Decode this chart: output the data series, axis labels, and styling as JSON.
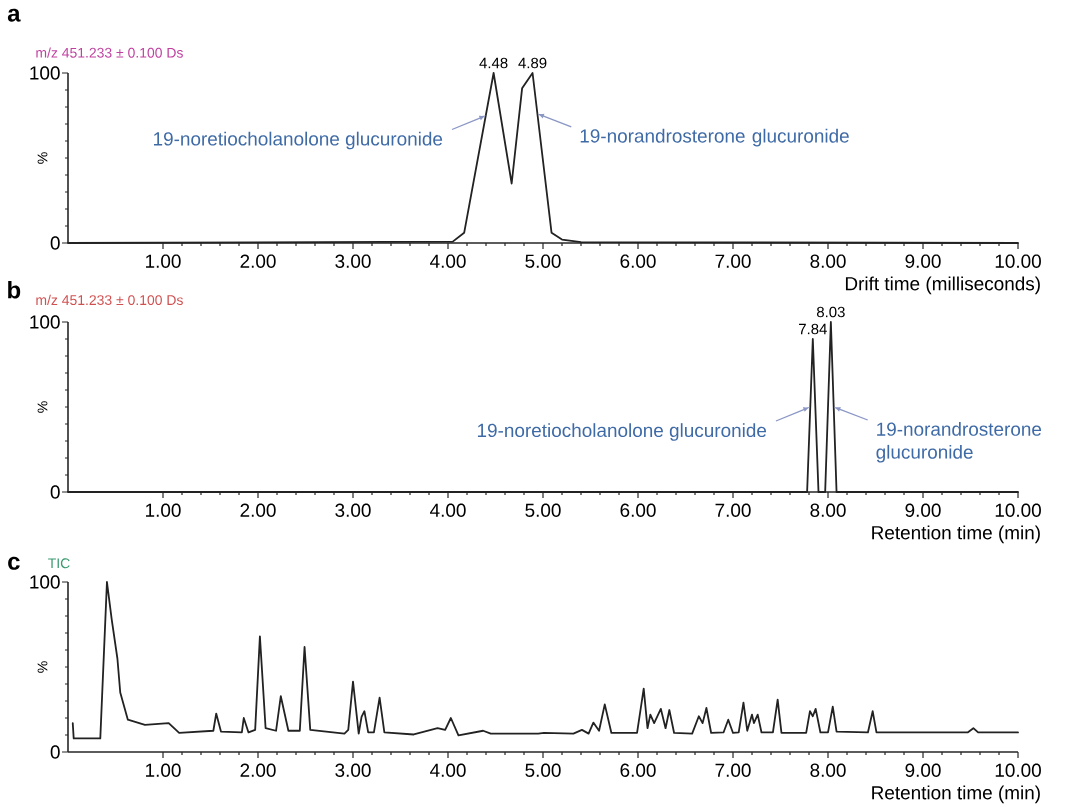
{
  "chart_data": [
    {
      "type": "line",
      "title": "a",
      "subtitle": "m/z 451.233 ± 0.100 Ds",
      "xlabel": "Drift time (milliseconds)",
      "ylabel": "%",
      "x": [
        0,
        4.05,
        4.17,
        4.48,
        4.67,
        4.78,
        4.89,
        5.09,
        5.2,
        5.4,
        10
      ],
      "values": [
        0,
        0.8,
        6,
        100,
        35,
        91,
        100,
        6,
        2,
        0.5,
        0
      ],
      "color": "#222222",
      "xlim": [
        0,
        10
      ],
      "ylim": [
        0,
        100
      ],
      "xticks": [
        {
          "value": 1,
          "label": "1.00"
        },
        {
          "value": 2,
          "label": "2.00"
        },
        {
          "value": 3,
          "label": "3.00"
        },
        {
          "value": 4,
          "label": "4.00"
        },
        {
          "value": 5,
          "label": "5.00"
        },
        {
          "value": 6,
          "label": "6.00"
        },
        {
          "value": 7,
          "label": "7.00"
        },
        {
          "value": 8,
          "label": "8.00"
        },
        {
          "value": 9,
          "label": "9.00"
        },
        {
          "value": 10,
          "label": "10.00"
        }
      ],
      "yticks": [
        0,
        100
      ],
      "annotations": [
        {
          "text": "4.48",
          "x": 4.48,
          "y": 100
        },
        {
          "text": "4.89",
          "x": 4.89,
          "y": 100
        },
        {
          "text": "19-noretiocholanolone glucuronide",
          "x": 4.4,
          "y": 75
        },
        {
          "text": "19-norandrosterone glucuronide",
          "x": 4.94,
          "y": 76
        }
      ]
    },
    {
      "type": "line",
      "title": "b",
      "subtitle": "m/z 451.233 ± 0.100 Ds",
      "xlabel": "Retention time (min)",
      "ylabel": "%",
      "x": [
        0,
        7.78,
        7.84,
        7.9,
        7.97,
        8.03,
        8.09,
        10
      ],
      "values": [
        0,
        0,
        90,
        0,
        0,
        100,
        0,
        0
      ],
      "color": "#222222",
      "xlim": [
        0,
        10
      ],
      "ylim": [
        0,
        100
      ],
      "xticks": [
        {
          "value": 1,
          "label": "1.00"
        },
        {
          "value": 2,
          "label": "2.00"
        },
        {
          "value": 3,
          "label": "3.00"
        },
        {
          "value": 4,
          "label": "4.00"
        },
        {
          "value": 5,
          "label": "5.00"
        },
        {
          "value": 6,
          "label": "6.00"
        },
        {
          "value": 7,
          "label": "7.00"
        },
        {
          "value": 8,
          "label": "8.00"
        },
        {
          "value": 9,
          "label": "9.00"
        },
        {
          "value": 10,
          "label": "10.00"
        }
      ],
      "yticks": [
        0,
        100
      ],
      "annotations": [
        {
          "text": "7.84",
          "x": 7.84,
          "y": 90
        },
        {
          "text": "8.03",
          "x": 8.03,
          "y": 100
        },
        {
          "text": "19-noretiocholanolone glucuronide",
          "x": 7.81,
          "y": 50
        },
        {
          "text": "19-norandrosterone glucuronide",
          "x": 8.06,
          "y": 50
        }
      ]
    },
    {
      "type": "line",
      "title": "c",
      "subtitle": "TIC",
      "xlabel": "Retention time (min)",
      "ylabel": "%",
      "x": [
        0.05,
        0.06,
        0.34,
        0.41,
        0.46,
        0.52,
        0.55,
        0.63,
        0.81,
        1.06,
        1.17,
        1.53,
        1.56,
        1.61,
        1.83,
        1.85,
        1.9,
        1.97,
        2.02,
        2.08,
        2.19,
        2.24,
        2.32,
        2.44,
        2.49,
        2.55,
        2.91,
        2.95,
        3.0,
        3.06,
        3.09,
        3.12,
        3.16,
        3.22,
        3.28,
        3.33,
        3.64,
        3.89,
        3.97,
        4.03,
        4.11,
        4.37,
        4.45,
        4.95,
        5.01,
        5.32,
        5.41,
        5.48,
        5.53,
        5.59,
        5.65,
        5.72,
        5.99,
        6.06,
        6.1,
        6.13,
        6.17,
        6.24,
        6.29,
        6.33,
        6.38,
        6.57,
        6.64,
        6.68,
        6.72,
        6.77,
        6.9,
        6.95,
        7.0,
        7.06,
        7.11,
        7.15,
        7.2,
        7.22,
        7.26,
        7.3,
        7.42,
        7.47,
        7.51,
        7.77,
        7.81,
        7.84,
        7.87,
        7.92,
        8.0,
        8.05,
        8.09,
        8.42,
        8.47,
        8.51,
        9.47,
        9.53,
        9.58,
        10.0
      ],
      "values": [
        17,
        8,
        8,
        100,
        78,
        55,
        35,
        19,
        15.9,
        17,
        11.2,
        12.5,
        22.6,
        12,
        11.5,
        20,
        11.5,
        13,
        68,
        14,
        12.5,
        32.8,
        12.5,
        12.5,
        61.8,
        13,
        10.8,
        13,
        41.4,
        10.8,
        20.7,
        24,
        11.5,
        11.5,
        32,
        11.5,
        10.3,
        14,
        13,
        20,
        9.8,
        12.5,
        10.8,
        10.8,
        11.2,
        10.8,
        13,
        10.8,
        17.3,
        12.5,
        28,
        11.2,
        11.2,
        37.3,
        14,
        22,
        17,
        25.4,
        14,
        24.7,
        11.2,
        10.8,
        21,
        17,
        25.9,
        11.2,
        11.5,
        19,
        11.2,
        11.5,
        29,
        12.5,
        22,
        17,
        22,
        11.5,
        11.5,
        30.8,
        11.2,
        11.2,
        24,
        21,
        25.4,
        11.5,
        11.5,
        26.7,
        12,
        11.5,
        24,
        11.5,
        11.5,
        14,
        11.5,
        11.5
      ],
      "color": "#222222",
      "xlim": [
        0,
        10
      ],
      "ylim": [
        0,
        100
      ],
      "xticks": [
        {
          "value": 1,
          "label": "1.00"
        },
        {
          "value": 2,
          "label": "2.00"
        },
        {
          "value": 3,
          "label": "3.00"
        },
        {
          "value": 4,
          "label": "4.00"
        },
        {
          "value": 5,
          "label": "5.00"
        },
        {
          "value": 6,
          "label": "6.00"
        },
        {
          "value": 7,
          "label": "7.00"
        },
        {
          "value": 8,
          "label": "8.00"
        },
        {
          "value": 9,
          "label": "9.00"
        },
        {
          "value": 10,
          "label": "10.00"
        }
      ],
      "yticks": [
        0,
        100
      ]
    }
  ]
}
